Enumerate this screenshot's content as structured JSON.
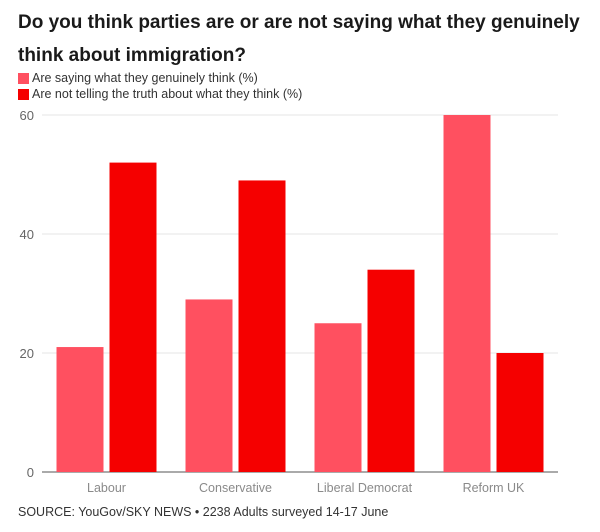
{
  "title": "Do you think parties are or are not saying what they genuinely think about immigration?",
  "source": "SOURCE: YouGov/SKY NEWS • 2238 Adults surveyed 14-17 June",
  "colors": {
    "series_1": "#ff5060",
    "series_2": "#f50000",
    "grid": "#e6e6e6",
    "axis": "#555555"
  },
  "chart_data": {
    "type": "bar",
    "title": "Do you think parties are or are not saying what they genuinely think about immigration?",
    "xlabel": "",
    "ylabel": "",
    "categories": [
      "Labour",
      "Conservative",
      "Liberal Democrat",
      "Reform UK"
    ],
    "series": [
      {
        "name": "Are saying what they genuinely think (%)",
        "values": [
          21,
          29,
          25,
          60
        ]
      },
      {
        "name": "Are not telling the truth about what they think (%)",
        "values": [
          52,
          49,
          34,
          20
        ]
      }
    ],
    "ylim": [
      0,
      60
    ],
    "yticks": [
      0,
      20,
      40,
      60
    ],
    "grid": true,
    "legend": "top-left"
  }
}
